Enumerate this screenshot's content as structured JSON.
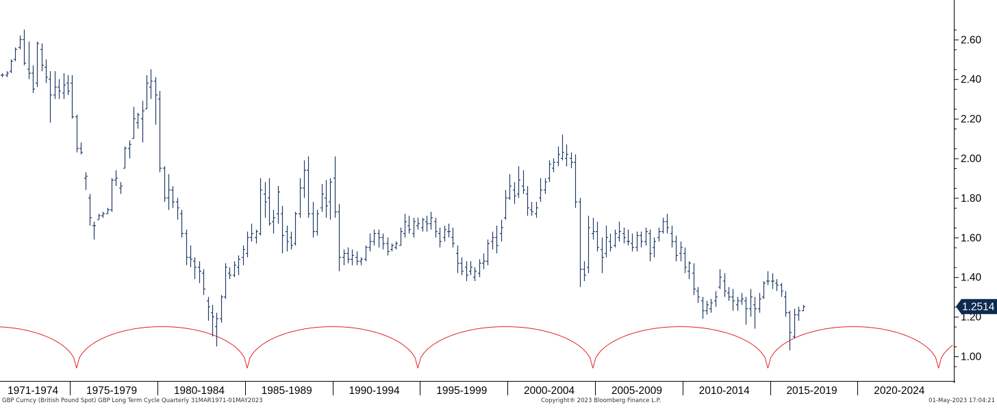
{
  "chart_data": {
    "type": "bar",
    "subtype": "ohlc",
    "frequency": "Quarterly",
    "y_axis_side": "right",
    "ylim": [
      0.92,
      2.73
    ],
    "yticks": [
      "1.00",
      "1.20",
      "1.40",
      "1.60",
      "1.80",
      "2.00",
      "2.20",
      "2.40",
      "2.60"
    ],
    "x_period_labels": [
      "1971-1974",
      "1975-1979",
      "1980-1984",
      "1985-1989",
      "1990-1994",
      "1995-1999",
      "2000-2004",
      "2005-2009",
      "2010-2014",
      "2015-2019",
      "2020-2024"
    ],
    "last_value_label": "1.2514",
    "colors": {
      "bars": "#1f3a66",
      "cycle": "#e02020",
      "badge": "#0d2a50",
      "axis": "#000000",
      "text": "#000000"
    },
    "series": [
      {
        "start_year": 1971,
        "start_quarter": 1,
        "bars": [
          [
            2.42,
            2.43,
            2.41,
            2.42
          ],
          [
            2.42,
            2.44,
            2.41,
            2.43
          ],
          [
            2.44,
            2.5,
            2.43,
            2.49
          ],
          [
            2.5,
            2.56,
            2.49,
            2.55
          ],
          [
            2.56,
            2.62,
            2.55,
            2.6
          ],
          [
            2.6,
            2.65,
            2.47,
            2.48
          ],
          [
            2.45,
            2.59,
            2.4,
            2.43
          ],
          [
            2.43,
            2.47,
            2.33,
            2.35
          ],
          [
            2.38,
            2.59,
            2.36,
            2.58
          ],
          [
            2.55,
            2.58,
            2.44,
            2.47
          ],
          [
            2.46,
            2.5,
            2.38,
            2.41
          ],
          [
            2.4,
            2.44,
            2.18,
            2.32
          ],
          [
            2.32,
            2.44,
            2.3,
            2.36
          ],
          [
            2.36,
            2.4,
            2.3,
            2.34
          ],
          [
            2.33,
            2.43,
            2.3,
            2.37
          ],
          [
            2.38,
            2.42,
            2.32,
            2.34
          ],
          [
            2.38,
            2.42,
            2.2,
            2.21
          ],
          [
            2.21,
            2.22,
            2.03,
            2.05
          ],
          [
            2.05,
            2.08,
            2.02,
            2.03
          ],
          [
            1.9,
            1.93,
            1.84,
            1.91
          ],
          [
            1.8,
            1.82,
            1.66,
            1.7
          ],
          [
            1.66,
            1.68,
            1.59,
            1.66
          ],
          [
            1.69,
            1.72,
            1.69,
            1.71
          ],
          [
            1.71,
            1.73,
            1.7,
            1.72
          ],
          [
            1.72,
            1.75,
            1.72,
            1.74
          ],
          [
            1.74,
            1.9,
            1.73,
            1.89
          ],
          [
            1.89,
            1.94,
            1.86,
            1.9
          ],
          [
            1.85,
            1.88,
            1.82,
            1.86
          ],
          [
            1.95,
            2.06,
            1.95,
            2.05
          ],
          [
            2.05,
            2.09,
            2.0,
            2.07
          ],
          [
            2.1,
            2.26,
            2.1,
            2.2
          ],
          [
            2.18,
            2.23,
            2.15,
            2.22
          ],
          [
            2.2,
            2.29,
            2.08,
            2.24
          ],
          [
            2.25,
            2.42,
            2.25,
            2.38
          ],
          [
            2.36,
            2.45,
            2.3,
            2.39
          ],
          [
            2.39,
            2.41,
            2.17,
            2.32
          ],
          [
            2.3,
            2.34,
            1.93,
            1.95
          ],
          [
            1.95,
            1.96,
            1.78,
            1.8
          ],
          [
            1.8,
            1.92,
            1.74,
            1.84
          ],
          [
            1.84,
            1.86,
            1.75,
            1.78
          ],
          [
            1.78,
            1.8,
            1.69,
            1.75
          ],
          [
            1.72,
            1.74,
            1.6,
            1.62
          ],
          [
            1.62,
            1.64,
            1.46,
            1.5
          ],
          [
            1.5,
            1.56,
            1.45,
            1.49
          ],
          [
            1.48,
            1.5,
            1.39,
            1.45
          ],
          [
            1.45,
            1.48,
            1.37,
            1.43
          ],
          [
            1.42,
            1.44,
            1.31,
            1.34
          ],
          [
            1.28,
            1.3,
            1.18,
            1.25
          ],
          [
            1.22,
            1.26,
            1.1,
            1.2
          ],
          [
            1.15,
            1.22,
            1.05,
            1.19
          ],
          [
            1.19,
            1.31,
            1.17,
            1.3
          ],
          [
            1.3,
            1.47,
            1.29,
            1.45
          ],
          [
            1.42,
            1.45,
            1.39,
            1.41
          ],
          [
            1.41,
            1.48,
            1.4,
            1.46
          ],
          [
            1.45,
            1.51,
            1.41,
            1.49
          ],
          [
            1.5,
            1.56,
            1.46,
            1.54
          ],
          [
            1.52,
            1.63,
            1.5,
            1.6
          ],
          [
            1.6,
            1.67,
            1.58,
            1.62
          ],
          [
            1.6,
            1.64,
            1.57,
            1.63
          ],
          [
            1.62,
            1.9,
            1.61,
            1.84
          ],
          [
            1.82,
            1.88,
            1.7,
            1.78
          ],
          [
            1.8,
            1.9,
            1.66,
            1.67
          ],
          [
            1.68,
            1.74,
            1.62,
            1.7
          ],
          [
            1.72,
            1.86,
            1.67,
            1.83
          ],
          [
            1.72,
            1.76,
            1.52,
            1.61
          ],
          [
            1.63,
            1.66,
            1.53,
            1.58
          ],
          [
            1.6,
            1.63,
            1.54,
            1.56
          ],
          [
            1.57,
            1.73,
            1.56,
            1.72
          ],
          [
            1.72,
            1.9,
            1.7,
            1.85
          ],
          [
            1.85,
            1.99,
            1.8,
            1.94
          ],
          [
            1.94,
            2.01,
            1.7,
            1.72
          ],
          [
            1.72,
            1.78,
            1.6,
            1.63
          ],
          [
            1.63,
            1.74,
            1.61,
            1.72
          ],
          [
            1.75,
            1.87,
            1.73,
            1.82
          ],
          [
            1.8,
            1.89,
            1.7,
            1.76
          ],
          [
            1.78,
            1.9,
            1.69,
            1.88
          ],
          [
            1.9,
            2.01,
            1.7,
            1.73
          ],
          [
            1.73,
            1.77,
            1.43,
            1.5
          ],
          [
            1.5,
            1.54,
            1.46,
            1.52
          ],
          [
            1.52,
            1.55,
            1.47,
            1.49
          ],
          [
            1.49,
            1.54,
            1.46,
            1.51
          ],
          [
            1.5,
            1.53,
            1.46,
            1.48
          ],
          [
            1.48,
            1.5,
            1.46,
            1.49
          ],
          [
            1.49,
            1.56,
            1.48,
            1.55
          ],
          [
            1.55,
            1.62,
            1.53,
            1.58
          ],
          [
            1.58,
            1.64,
            1.56,
            1.62
          ],
          [
            1.62,
            1.64,
            1.55,
            1.6
          ],
          [
            1.6,
            1.62,
            1.54,
            1.57
          ],
          [
            1.57,
            1.6,
            1.51,
            1.53
          ],
          [
            1.54,
            1.57,
            1.53,
            1.56
          ],
          [
            1.55,
            1.58,
            1.54,
            1.57
          ],
          [
            1.56,
            1.65,
            1.56,
            1.63
          ],
          [
            1.62,
            1.72,
            1.6,
            1.68
          ],
          [
            1.66,
            1.71,
            1.62,
            1.64
          ],
          [
            1.62,
            1.7,
            1.6,
            1.68
          ],
          [
            1.66,
            1.7,
            1.64,
            1.67
          ],
          [
            1.65,
            1.7,
            1.63,
            1.69
          ],
          [
            1.68,
            1.71,
            1.63,
            1.67
          ],
          [
            1.67,
            1.73,
            1.64,
            1.7
          ],
          [
            1.68,
            1.7,
            1.6,
            1.63
          ],
          [
            1.62,
            1.65,
            1.55,
            1.58
          ],
          [
            1.6,
            1.66,
            1.58,
            1.64
          ],
          [
            1.63,
            1.67,
            1.6,
            1.63
          ],
          [
            1.6,
            1.65,
            1.55,
            1.57
          ],
          [
            1.52,
            1.56,
            1.42,
            1.47
          ],
          [
            1.47,
            1.5,
            1.41,
            1.43
          ],
          [
            1.45,
            1.48,
            1.38,
            1.41
          ],
          [
            1.43,
            1.48,
            1.41,
            1.45
          ],
          [
            1.4,
            1.45,
            1.38,
            1.43
          ],
          [
            1.42,
            1.49,
            1.4,
            1.47
          ],
          [
            1.47,
            1.52,
            1.44,
            1.48
          ],
          [
            1.48,
            1.59,
            1.46,
            1.57
          ],
          [
            1.58,
            1.63,
            1.54,
            1.6
          ],
          [
            1.6,
            1.66,
            1.52,
            1.56
          ],
          [
            1.62,
            1.69,
            1.58,
            1.65
          ],
          [
            1.7,
            1.84,
            1.69,
            1.8
          ],
          [
            1.8,
            1.92,
            1.79,
            1.86
          ],
          [
            1.84,
            1.88,
            1.77,
            1.81
          ],
          [
            1.82,
            1.96,
            1.8,
            1.89
          ],
          [
            1.86,
            1.94,
            1.82,
            1.84
          ],
          [
            1.82,
            1.86,
            1.71,
            1.75
          ],
          [
            1.74,
            1.78,
            1.71,
            1.73
          ],
          [
            1.72,
            1.78,
            1.7,
            1.75
          ],
          [
            1.8,
            1.9,
            1.78,
            1.84
          ],
          [
            1.84,
            1.9,
            1.82,
            1.88
          ],
          [
            1.9,
            1.99,
            1.88,
            1.97
          ],
          [
            1.95,
            2.0,
            1.93,
            1.98
          ],
          [
            1.98,
            2.06,
            1.96,
            2.02
          ],
          [
            2.0,
            2.12,
            1.99,
            2.03
          ],
          [
            2.0,
            2.07,
            1.96,
            2.02
          ],
          [
            2.0,
            2.03,
            1.95,
            1.98
          ],
          [
            1.98,
            2.02,
            1.75,
            1.78
          ],
          [
            1.78,
            1.8,
            1.35,
            1.44
          ],
          [
            1.44,
            1.48,
            1.38,
            1.41
          ],
          [
            1.45,
            1.71,
            1.42,
            1.65
          ],
          [
            1.62,
            1.7,
            1.59,
            1.63
          ],
          [
            1.63,
            1.68,
            1.53,
            1.55
          ],
          [
            1.54,
            1.6,
            1.42,
            1.5
          ],
          [
            1.52,
            1.66,
            1.5,
            1.6
          ],
          [
            1.58,
            1.62,
            1.53,
            1.55
          ],
          [
            1.56,
            1.64,
            1.55,
            1.62
          ],
          [
            1.6,
            1.68,
            1.58,
            1.63
          ],
          [
            1.62,
            1.65,
            1.57,
            1.6
          ],
          [
            1.58,
            1.64,
            1.56,
            1.58
          ],
          [
            1.57,
            1.62,
            1.53,
            1.55
          ],
          [
            1.55,
            1.63,
            1.53,
            1.61
          ],
          [
            1.61,
            1.63,
            1.55,
            1.58
          ],
          [
            1.58,
            1.65,
            1.56,
            1.63
          ],
          [
            1.62,
            1.64,
            1.48,
            1.52
          ],
          [
            1.55,
            1.6,
            1.5,
            1.58
          ],
          [
            1.6,
            1.65,
            1.58,
            1.63
          ],
          [
            1.63,
            1.7,
            1.62,
            1.68
          ],
          [
            1.68,
            1.72,
            1.62,
            1.65
          ],
          [
            1.62,
            1.66,
            1.55,
            1.58
          ],
          [
            1.58,
            1.61,
            1.48,
            1.51
          ],
          [
            1.52,
            1.58,
            1.48,
            1.55
          ],
          [
            1.52,
            1.55,
            1.42,
            1.45
          ],
          [
            1.43,
            1.48,
            1.39,
            1.47
          ],
          [
            1.42,
            1.47,
            1.31,
            1.34
          ],
          [
            1.33,
            1.35,
            1.27,
            1.3
          ],
          [
            1.28,
            1.3,
            1.19,
            1.23
          ],
          [
            1.23,
            1.28,
            1.21,
            1.26
          ],
          [
            1.24,
            1.29,
            1.22,
            1.27
          ],
          [
            1.28,
            1.33,
            1.25,
            1.3
          ],
          [
            1.35,
            1.44,
            1.34,
            1.4
          ],
          [
            1.38,
            1.42,
            1.3,
            1.33
          ],
          [
            1.32,
            1.35,
            1.28,
            1.3
          ],
          [
            1.3,
            1.34,
            1.23,
            1.28
          ],
          [
            1.26,
            1.3,
            1.23,
            1.28
          ],
          [
            1.28,
            1.32,
            1.26,
            1.29
          ],
          [
            1.28,
            1.3,
            1.16,
            1.24
          ],
          [
            1.24,
            1.34,
            1.2,
            1.3
          ],
          [
            1.26,
            1.3,
            1.14,
            1.24
          ],
          [
            1.24,
            1.32,
            1.22,
            1.29
          ],
          [
            1.3,
            1.38,
            1.29,
            1.37
          ],
          [
            1.38,
            1.43,
            1.36,
            1.38
          ],
          [
            1.38,
            1.42,
            1.34,
            1.38
          ],
          [
            1.37,
            1.39,
            1.33,
            1.36
          ],
          [
            1.36,
            1.37,
            1.3,
            1.33
          ],
          [
            1.3,
            1.33,
            1.2,
            1.22
          ],
          [
            1.22,
            1.23,
            1.03,
            1.12
          ],
          [
            1.1,
            1.24,
            1.09,
            1.21
          ],
          [
            1.21,
            1.25,
            1.18,
            1.23
          ],
          [
            1.23,
            1.26,
            1.23,
            1.25
          ]
        ]
      }
    ],
    "overlay": {
      "type": "cycle_arcs",
      "name": "Long Term Cycle",
      "trough_value": 0.94,
      "peak_value": 1.15,
      "troughs": [
        "1975-Q2",
        "1985-Q1",
        "1994-Q4",
        "2004-Q4",
        "2014-Q4",
        "2024-Q3"
      ]
    }
  },
  "footer": {
    "left": "GBP Curncy (British Pound Spot) GBP Long Term Cycle  Quarterly 31MAR1971-01MAY2023",
    "center": "Copyright® 2023 Bloomberg Finance L.P.",
    "right": "01-May-2023 17:04:21"
  }
}
